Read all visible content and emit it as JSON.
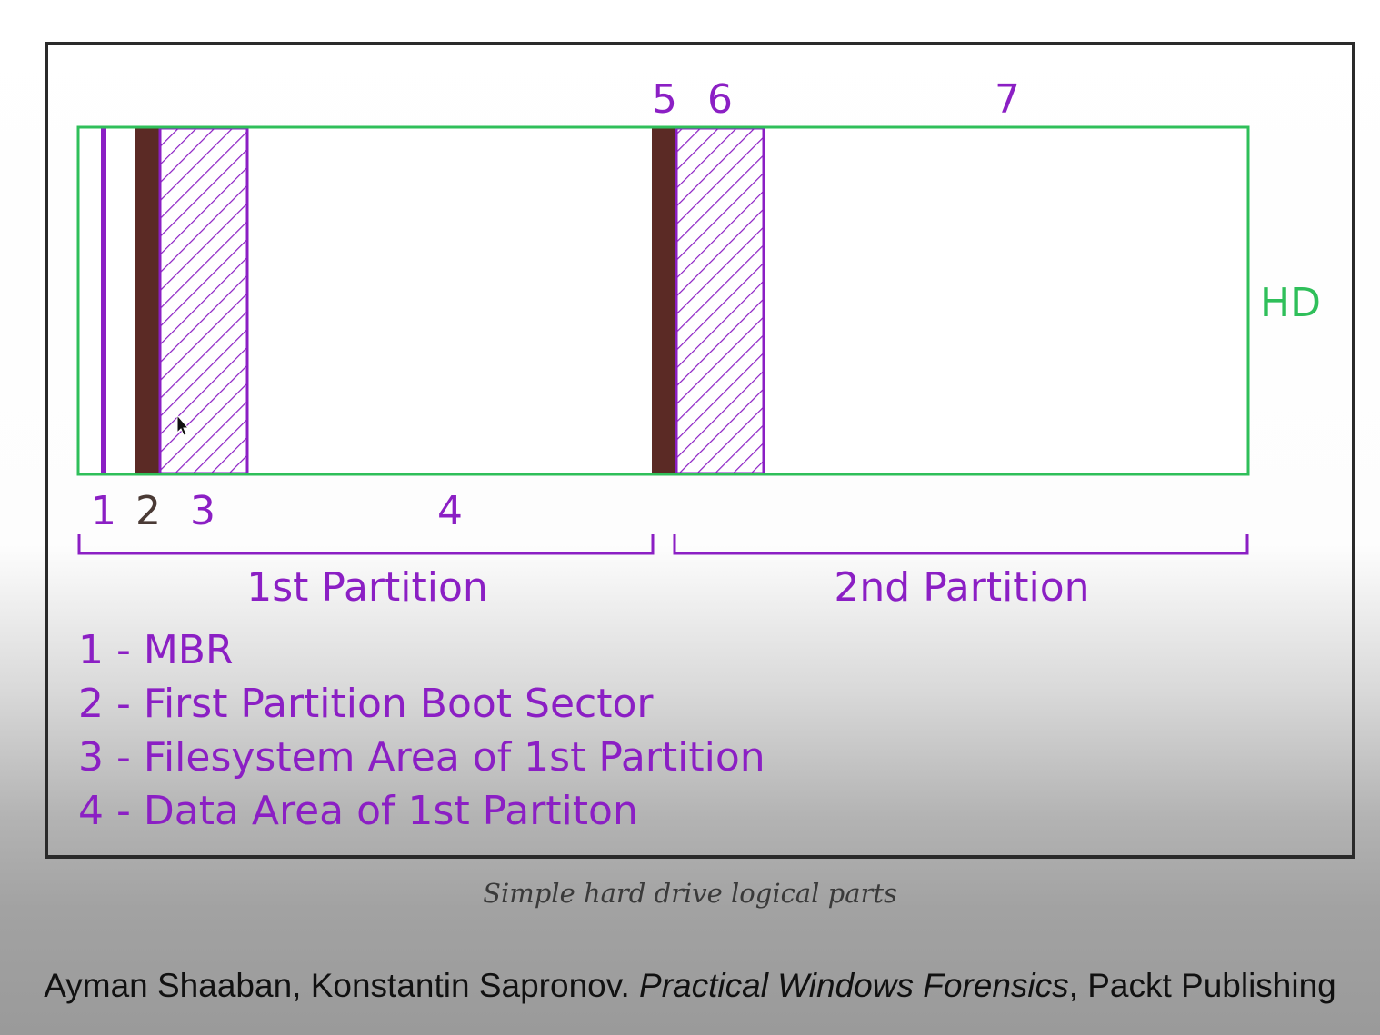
{
  "diagram": {
    "top_labels": [
      "5",
      "6",
      "7"
    ],
    "bottom_labels": [
      "1",
      "2",
      "3",
      "4"
    ],
    "drive_label": "HD",
    "partitions": [
      "1st Partition",
      "2nd Partition"
    ],
    "colors": {
      "border": "#2fbf5a",
      "purple": "#8b1fc4",
      "boot_sector": "#5b2a25"
    }
  },
  "legend": [
    "1 - MBR",
    "2 - First Partition Boot Sector",
    "3 - Filesystem Area of 1st Partition",
    "4 - Data Area of 1st Partiton"
  ],
  "caption": "Simple hard drive logical parts",
  "citation": {
    "authors": "Ayman Shaaban, Konstantin Sapronov.",
    "title": "Practical Windows Forensics",
    "publisher": ", Packt Publishing"
  }
}
